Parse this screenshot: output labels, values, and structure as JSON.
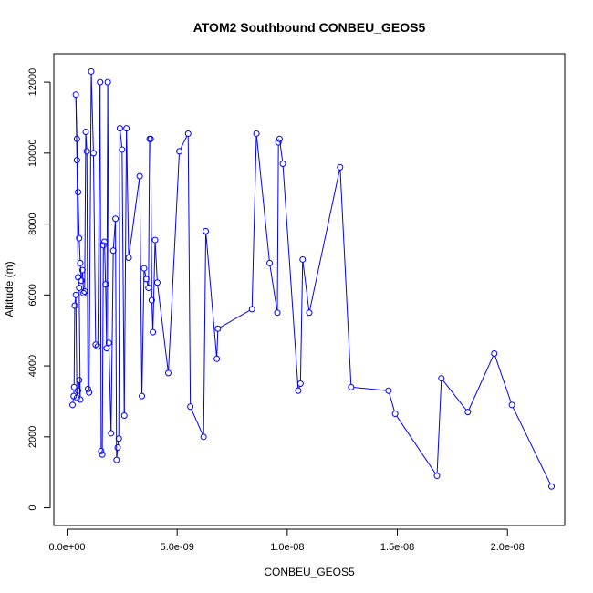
{
  "chart_data": {
    "type": "line",
    "title": "ATOM2 Southbound CONBEU_GEOS5",
    "xlabel": "CONBEU_GEOS5",
    "ylabel": "Altitude (m)",
    "xlim": [
      -6e-10,
      2.26e-08
    ],
    "ylim": [
      -500,
      12800
    ],
    "xticks": [
      0,
      5e-09,
      1e-08,
      1.5e-08,
      2e-08
    ],
    "xtick_labels": [
      "0.0e+00",
      "5.0e-09",
      "1.0e-08",
      "1.5e-08",
      "2.0e-08"
    ],
    "yticks": [
      0,
      2000,
      4000,
      6000,
      8000,
      10000,
      12000
    ],
    "ytick_labels": [
      "0",
      "2000",
      "4000",
      "6000",
      "8000",
      "10000",
      "12000"
    ],
    "marker": "open-circle",
    "line_color": "#0000ff",
    "grid": false,
    "legend": "none",
    "series": [
      {
        "x": [
          2.5e-10,
          3e-10,
          3.2e-10,
          3.5e-10,
          4e-10,
          4.5e-10,
          5e-10,
          5.5e-10,
          6e-10,
          5.5e-10,
          5e-10,
          4.5e-10,
          4e-10,
          4.5e-10,
          5e-10,
          5.5e-10,
          6e-10,
          6.5e-10,
          7e-10,
          7.5e-10,
          8e-10,
          8.5e-10,
          9e-10,
          9.5e-10,
          1e-09,
          1.1e-09,
          1.2e-09,
          1.3e-09,
          1.4e-09,
          1.5e-09,
          1.55e-09,
          1.6e-09,
          1.65e-09,
          1.7e-09,
          1.75e-09,
          1.8e-09,
          1.85e-09,
          1.9e-09,
          2e-09,
          2.1e-09,
          2.2e-09,
          2.25e-09,
          2.3e-09,
          2.35e-09,
          2.4e-09,
          2.5e-09,
          2.6e-09,
          2.7e-09,
          2.8e-09,
          3.3e-09,
          3.4e-09,
          3.5e-09,
          3.6e-09,
          3.7e-09,
          3.75e-09,
          3.8e-09,
          3.85e-09,
          3.9e-09,
          4e-09,
          4.1e-09,
          4.6e-09,
          5.1e-09,
          5.5e-09,
          5.6e-09,
          6.2e-09,
          6.3e-09,
          6.8e-09,
          6.85e-09,
          8.4e-09,
          8.6e-09,
          9.2e-09,
          9.55e-09,
          9.6e-09,
          9.65e-09,
          9.8e-09,
          1.05e-08,
          1.06e-08,
          1.07e-08,
          1.1e-08,
          1.24e-08,
          1.29e-08,
          1.46e-08,
          1.49e-08,
          1.68e-08,
          1.7e-08,
          1.82e-08,
          1.94e-08,
          2.02e-08,
          2.2e-08
        ],
        "y": [
          2900,
          3150,
          3400,
          5700,
          6000,
          3100,
          3300,
          3600,
          3050,
          6200,
          6500,
          9800,
          11650,
          10400,
          8900,
          7600,
          6900,
          6400,
          6700,
          6050,
          6100,
          10600,
          10050,
          3350,
          3250,
          12300,
          10000,
          4600,
          4550,
          12000,
          1600,
          1500,
          7400,
          7500,
          6300,
          4500,
          12000,
          4650,
          2100,
          7250,
          8150,
          1350,
          1700,
          1950,
          10700,
          10100,
          2600,
          10700,
          7050,
          9350,
          3150,
          6750,
          6450,
          6200,
          10400,
          10400,
          5850,
          4950,
          7550,
          6350,
          3800,
          10050,
          10550,
          2850,
          2000,
          7800,
          4200,
          5050,
          5600,
          10550,
          6900,
          5500,
          10300,
          10400,
          9700,
          3300,
          3500,
          7000,
          5500,
          9600,
          3400,
          3300,
          2650,
          900,
          3650,
          2700,
          4350,
          2900,
          600
        ]
      }
    ]
  }
}
